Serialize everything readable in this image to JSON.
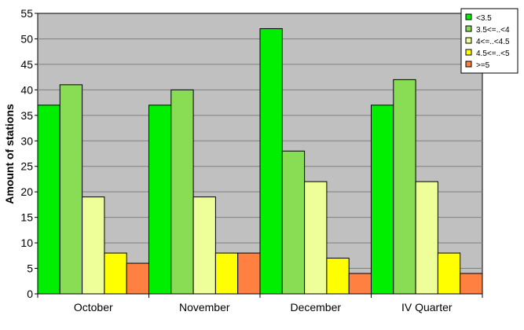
{
  "chart_data": {
    "type": "bar",
    "title": "",
    "xlabel": "",
    "ylabel": "Amount of stations",
    "ylim": [
      0,
      55
    ],
    "y_tick_step": 5,
    "grid": true,
    "legend_position": "top-right",
    "categories": [
      "October",
      "November",
      "December",
      "IV Quarter"
    ],
    "series": [
      {
        "name": "<3.5",
        "color": "#00ee00",
        "values": [
          37,
          37,
          52,
          37
        ]
      },
      {
        "name": "3.5<=..<4",
        "color": "#88dd55",
        "values": [
          41,
          40,
          28,
          42
        ]
      },
      {
        "name": "4<=..<4.5",
        "color": "#eeff99",
        "values": [
          19,
          19,
          22,
          22
        ]
      },
      {
        "name": "4.5<=..<5",
        "color": "#ffff00",
        "values": [
          8,
          8,
          7,
          8
        ]
      },
      {
        "name": ">=5",
        "color": "#ff8040",
        "values": [
          6,
          8,
          4,
          4
        ]
      }
    ],
    "plot_background": "#c0c0c0"
  }
}
